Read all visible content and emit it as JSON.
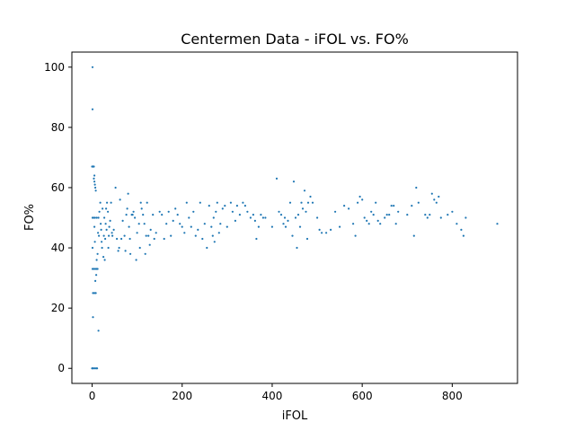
{
  "chart_data": {
    "type": "scatter",
    "title": "Centermen Data - iFOL vs. FO%",
    "xlabel": "iFOL",
    "ylabel": "FO%",
    "xlim": [
      -45,
      945
    ],
    "ylim": [
      -5,
      105
    ],
    "xticks": [
      0,
      200,
      400,
      600,
      800
    ],
    "yticks": [
      0,
      20,
      40,
      60,
      80,
      100
    ],
    "grid": false,
    "legend": "none",
    "marker_color": "#1f77b4",
    "points": [
      [
        0,
        0
      ],
      [
        1,
        0
      ],
      [
        3,
        0
      ],
      [
        6,
        0
      ],
      [
        9,
        0
      ],
      [
        11,
        0
      ],
      [
        1,
        100
      ],
      [
        1,
        86
      ],
      [
        0,
        67
      ],
      [
        1,
        67
      ],
      [
        2,
        67
      ],
      [
        3,
        67
      ],
      [
        4,
        67
      ],
      [
        4,
        63
      ],
      [
        5,
        62
      ],
      [
        6,
        61
      ],
      [
        7,
        60
      ],
      [
        8,
        59
      ],
      [
        5,
        64
      ],
      [
        1,
        50
      ],
      [
        3,
        50
      ],
      [
        6,
        50
      ],
      [
        10,
        50
      ],
      [
        14,
        50
      ],
      [
        1,
        40
      ],
      [
        1,
        33
      ],
      [
        4,
        33
      ],
      [
        7,
        33
      ],
      [
        10,
        33
      ],
      [
        12,
        33
      ],
      [
        2,
        25
      ],
      [
        5,
        25
      ],
      [
        8,
        25
      ],
      [
        2,
        17
      ],
      [
        14,
        12.5
      ],
      [
        5,
        47
      ],
      [
        6,
        42
      ],
      [
        7,
        29
      ],
      [
        9,
        31
      ],
      [
        10,
        36
      ],
      [
        12,
        38
      ],
      [
        13,
        45
      ],
      [
        15,
        44
      ],
      [
        16,
        52
      ],
      [
        18,
        55
      ],
      [
        19,
        48
      ],
      [
        20,
        46
      ],
      [
        21,
        42
      ],
      [
        22,
        40
      ],
      [
        23,
        53
      ],
      [
        25,
        37
      ],
      [
        26,
        44
      ],
      [
        27,
        50
      ],
      [
        28,
        36
      ],
      [
        29,
        43
      ],
      [
        30,
        48
      ],
      [
        31,
        53
      ],
      [
        32,
        46
      ],
      [
        33,
        55
      ],
      [
        35,
        52
      ],
      [
        36,
        40
      ],
      [
        37,
        44
      ],
      [
        38,
        47
      ],
      [
        40,
        49
      ],
      [
        42,
        55
      ],
      [
        44,
        45
      ],
      [
        45,
        44
      ],
      [
        48,
        46
      ],
      [
        52,
        60
      ],
      [
        55,
        43
      ],
      [
        58,
        39
      ],
      [
        60,
        40
      ],
      [
        62,
        56
      ],
      [
        65,
        43
      ],
      [
        68,
        49
      ],
      [
        72,
        44
      ],
      [
        74,
        39
      ],
      [
        76,
        51
      ],
      [
        78,
        53
      ],
      [
        80,
        58
      ],
      [
        82,
        47
      ],
      [
        84,
        43
      ],
      [
        85,
        38
      ],
      [
        88,
        51
      ],
      [
        90,
        51
      ],
      [
        92,
        52
      ],
      [
        95,
        50
      ],
      [
        98,
        36
      ],
      [
        100,
        45
      ],
      [
        104,
        48
      ],
      [
        106,
        40
      ],
      [
        108,
        55
      ],
      [
        110,
        53
      ],
      [
        113,
        51
      ],
      [
        116,
        48
      ],
      [
        118,
        38
      ],
      [
        120,
        44
      ],
      [
        122,
        55
      ],
      [
        125,
        44
      ],
      [
        128,
        41
      ],
      [
        130,
        46
      ],
      [
        135,
        51
      ],
      [
        138,
        43
      ],
      [
        142,
        45
      ],
      [
        150,
        52
      ],
      [
        155,
        51
      ],
      [
        160,
        43
      ],
      [
        165,
        48
      ],
      [
        170,
        52
      ],
      [
        175,
        44
      ],
      [
        180,
        49
      ],
      [
        185,
        53
      ],
      [
        190,
        51
      ],
      [
        195,
        48
      ],
      [
        200,
        47
      ],
      [
        205,
        45
      ],
      [
        210,
        55
      ],
      [
        215,
        50
      ],
      [
        220,
        47
      ],
      [
        225,
        52
      ],
      [
        230,
        44
      ],
      [
        235,
        46
      ],
      [
        240,
        55
      ],
      [
        245,
        43
      ],
      [
        250,
        48
      ],
      [
        255,
        40
      ],
      [
        260,
        54
      ],
      [
        265,
        47
      ],
      [
        268,
        44
      ],
      [
        270,
        50
      ],
      [
        272,
        42
      ],
      [
        275,
        52
      ],
      [
        278,
        55
      ],
      [
        282,
        45
      ],
      [
        285,
        48
      ],
      [
        290,
        53
      ],
      [
        295,
        54
      ],
      [
        300,
        47
      ],
      [
        308,
        55
      ],
      [
        312,
        52
      ],
      [
        318,
        49
      ],
      [
        322,
        54
      ],
      [
        328,
        51
      ],
      [
        335,
        55
      ],
      [
        340,
        54
      ],
      [
        345,
        52
      ],
      [
        352,
        50
      ],
      [
        358,
        51
      ],
      [
        362,
        49
      ],
      [
        365,
        43
      ],
      [
        370,
        47
      ],
      [
        375,
        51
      ],
      [
        380,
        50
      ],
      [
        385,
        50
      ],
      [
        400,
        47
      ],
      [
        410,
        63
      ],
      [
        415,
        52
      ],
      [
        420,
        51
      ],
      [
        425,
        48
      ],
      [
        428,
        50
      ],
      [
        430,
        47
      ],
      [
        435,
        49
      ],
      [
        440,
        55
      ],
      [
        445,
        44
      ],
      [
        448,
        62
      ],
      [
        452,
        50
      ],
      [
        455,
        40
      ],
      [
        458,
        51
      ],
      [
        462,
        47
      ],
      [
        465,
        55
      ],
      [
        468,
        53
      ],
      [
        472,
        59
      ],
      [
        475,
        52
      ],
      [
        478,
        43
      ],
      [
        480,
        55
      ],
      [
        485,
        57
      ],
      [
        490,
        55
      ],
      [
        500,
        50
      ],
      [
        505,
        46
      ],
      [
        510,
        45
      ],
      [
        520,
        45
      ],
      [
        530,
        46
      ],
      [
        540,
        52
      ],
      [
        550,
        47
      ],
      [
        560,
        54
      ],
      [
        570,
        53
      ],
      [
        580,
        48
      ],
      [
        585,
        44
      ],
      [
        590,
        55
      ],
      [
        595,
        57
      ],
      [
        600,
        56
      ],
      [
        605,
        50
      ],
      [
        610,
        49
      ],
      [
        615,
        48
      ],
      [
        620,
        52
      ],
      [
        625,
        51
      ],
      [
        630,
        55
      ],
      [
        635,
        49
      ],
      [
        640,
        48
      ],
      [
        650,
        50
      ],
      [
        655,
        51
      ],
      [
        660,
        51
      ],
      [
        665,
        54
      ],
      [
        670,
        54
      ],
      [
        675,
        48
      ],
      [
        680,
        52
      ],
      [
        700,
        51
      ],
      [
        710,
        54
      ],
      [
        715,
        44
      ],
      [
        720,
        60
      ],
      [
        725,
        55
      ],
      [
        740,
        51
      ],
      [
        745,
        50
      ],
      [
        750,
        51
      ],
      [
        755,
        58
      ],
      [
        760,
        56
      ],
      [
        765,
        55
      ],
      [
        770,
        57
      ],
      [
        775,
        50
      ],
      [
        790,
        51
      ],
      [
        800,
        52
      ],
      [
        810,
        48
      ],
      [
        820,
        46
      ],
      [
        825,
        44
      ],
      [
        830,
        50
      ],
      [
        900,
        48
      ]
    ]
  }
}
